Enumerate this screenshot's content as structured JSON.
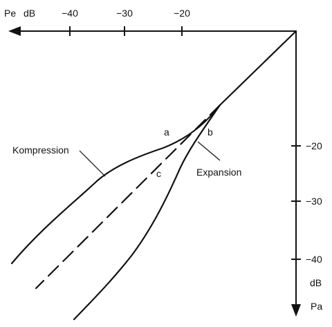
{
  "x_axis": {
    "name": "Pe",
    "unit": "dB",
    "ticks": [
      "−40",
      "−30",
      "−20"
    ]
  },
  "y_axis": {
    "name": "Pa",
    "unit": "dB",
    "ticks": [
      "−20",
      "−30",
      "−40"
    ]
  },
  "curve_labels": {
    "compression": "Kompression",
    "expansion": "Expansion",
    "a": "a",
    "b": "b",
    "c": "c"
  }
}
